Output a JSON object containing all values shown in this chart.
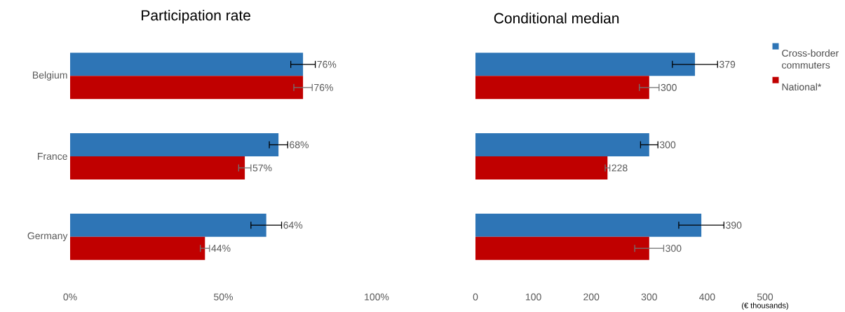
{
  "chart_data": [
    {
      "type": "bar",
      "orientation": "horizontal",
      "title": "Participation rate",
      "categories": [
        "Belgium",
        "France",
        "Germany"
      ],
      "series": [
        {
          "color": "#2e75b6",
          "values": [
            76,
            68,
            64
          ],
          "errors": [
            4,
            3,
            5
          ],
          "value_labels": [
            "76%",
            "68%",
            "64%"
          ]
        },
        {
          "color": "#c00000",
          "values": [
            76,
            57,
            44
          ],
          "errors": [
            3,
            2,
            1.5
          ],
          "value_labels": [
            "76%",
            "57%",
            "44%"
          ]
        }
      ],
      "xlim": [
        0,
        100
      ],
      "xticks": [
        {
          "value": 0,
          "label": "0%"
        },
        {
          "value": 50,
          "label": "50%"
        },
        {
          "value": 100,
          "label": "100%"
        }
      ],
      "grid": false,
      "legend": false
    },
    {
      "type": "bar",
      "orientation": "horizontal",
      "title": "Conditional median",
      "xlabel": "(€ thousands)",
      "categories": [
        null,
        null,
        null
      ],
      "series": [
        {
          "name": "Cross-border commuters",
          "color": "#2e75b6",
          "values": [
            379,
            300,
            390
          ],
          "errors": [
            39,
            15,
            39
          ]
        },
        {
          "name": "National*",
          "color": "#c00000",
          "values": [
            300,
            228,
            300
          ],
          "errors": [
            17,
            4,
            25
          ]
        }
      ],
      "xlim": [
        0,
        500
      ],
      "xticks": [
        0,
        100,
        200,
        300,
        400,
        500
      ],
      "data_labels": true,
      "tick_labels": "x",
      "grid": false,
      "legend": "right"
    }
  ]
}
